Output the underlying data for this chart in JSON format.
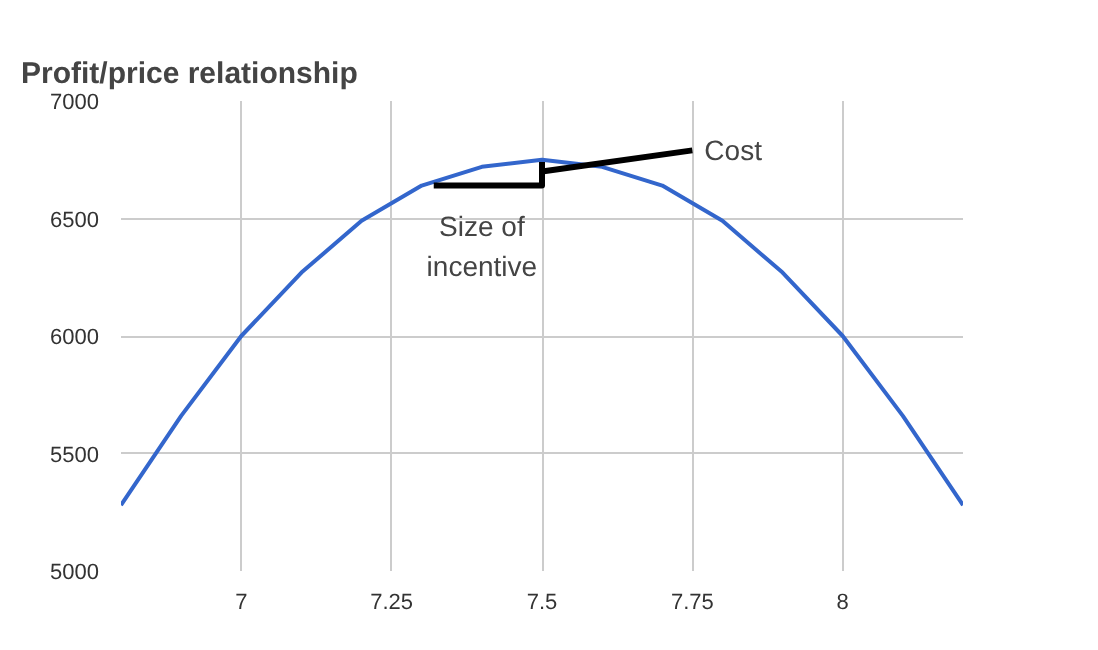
{
  "chart_data": {
    "type": "line",
    "title": "Profit/price relationship",
    "xlim": [
      6.8,
      8.2
    ],
    "xticks": [
      7,
      7.25,
      7.5,
      7.75,
      8
    ],
    "ylim": [
      5000,
      7000
    ],
    "yticks": [
      5000,
      5500,
      6000,
      6500,
      7000
    ],
    "grid": true,
    "series": [
      {
        "color": "#3366cc",
        "x": [
          6.8,
          6.9,
          7.0,
          7.1,
          7.2,
          7.3,
          7.4,
          7.5,
          7.6,
          7.7,
          7.8,
          7.9,
          8.0,
          8.1,
          8.2
        ],
        "values": [
          5280,
          5660,
          6000,
          6270,
          6490,
          6640,
          6720,
          6750,
          6720,
          6640,
          6490,
          6270,
          6000,
          5660,
          5280
        ]
      },
      {
        "color": "#000000",
        "x": [
          7.32,
          7.5,
          7.5
        ],
        "values": [
          6640,
          6640,
          6740
        ]
      },
      {
        "color": "#000000",
        "x": [
          7.5,
          7.75
        ],
        "values": [
          6700,
          6790
        ]
      }
    ],
    "annotations": [
      {
        "text": "Size of incentive",
        "x": 7.32,
        "y": 6640
      },
      {
        "text": "Cost",
        "x": 7.75,
        "y": 6790
      }
    ]
  }
}
